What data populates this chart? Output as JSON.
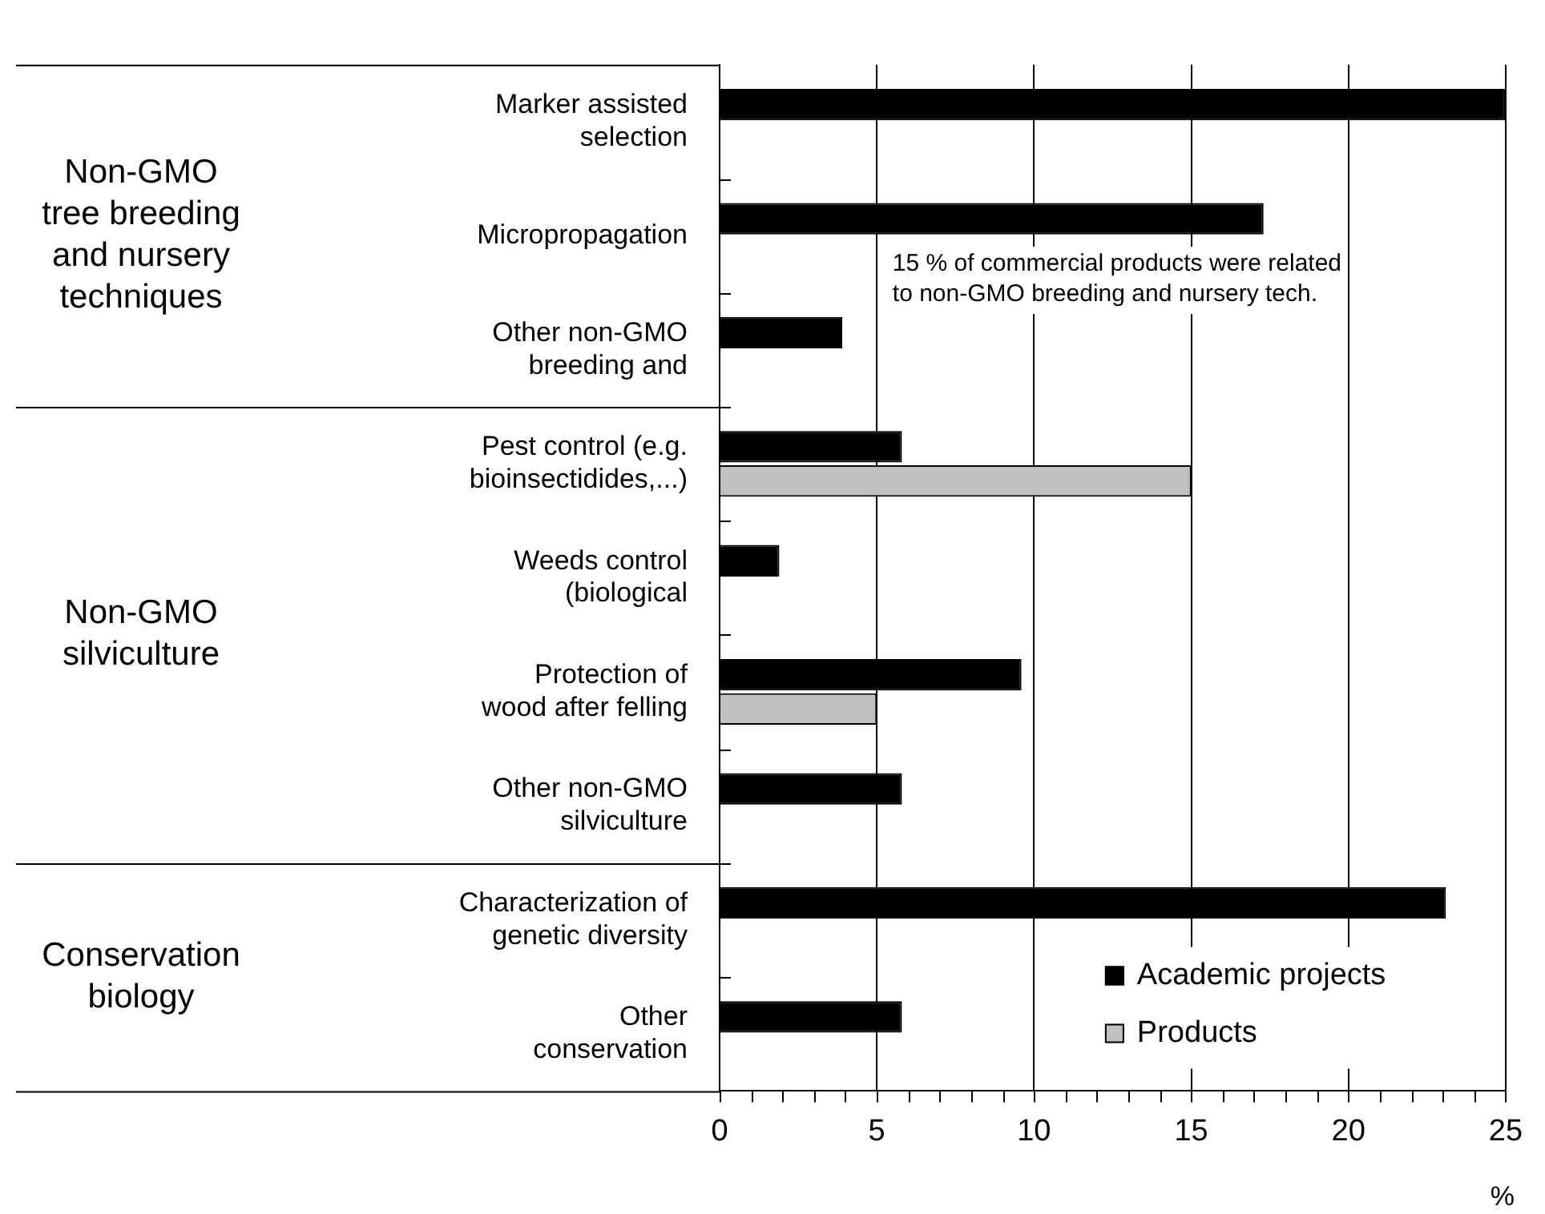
{
  "chart_data": {
    "type": "bar",
    "orientation": "horizontal",
    "xlabel": "%",
    "categories": [
      "Marker assisted\nselection",
      "Micropropagation",
      "Other non-GMO\nbreeding and",
      "Pest control (e.g.\nbioinsectidides,...)",
      "Weeds control\n(biological",
      "Protection of\nwood after felling",
      "Other non-GMO\nsilviculture",
      "Characterization of\ngenetic diversity",
      "Other\nconservation"
    ],
    "series": [
      {
        "name": "Academic projects",
        "color": "#000000",
        "values": [
          25,
          17.3,
          3.9,
          5.8,
          1.9,
          9.6,
          5.8,
          23.1,
          5.8
        ]
      },
      {
        "name": "Products",
        "color": "#c0c0c0",
        "values": [
          null,
          null,
          null,
          15,
          null,
          5,
          null,
          null,
          null
        ]
      }
    ],
    "xlim": [
      0,
      25
    ],
    "xticks": [
      0,
      5,
      10,
      15,
      20,
      25
    ],
    "grid": "x",
    "legend": "bottom right",
    "annotations": [
      "Non-GMO\ntree breeding\nand nursery\ntechniques",
      "Non-GMO\nsilviculture",
      "Conservation\nbiology",
      "15 % of commercial products were related\nto non-GMO breeding and nursery tech."
    ]
  }
}
